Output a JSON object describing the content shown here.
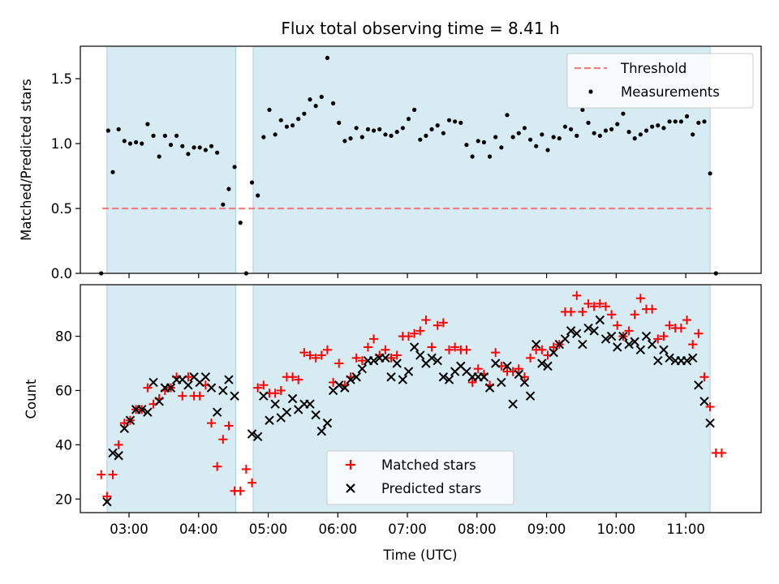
{
  "chart_data": [
    {
      "type": "scatter",
      "title": "Flux total observing time = 8.41 h",
      "xlabel": "",
      "ylabel": "Matched/Predicted stars",
      "xlim": [
        "02:18",
        "12:05"
      ],
      "ylim": [
        0,
        1.75
      ],
      "yticks": [
        "0.0",
        "0.5",
        "1.0",
        "1.5"
      ],
      "legend": {
        "placement": "top-right"
      },
      "shaded_intervals": [
        [
          "02:41",
          "04:32"
        ],
        [
          "04:47",
          "11:21"
        ]
      ],
      "series": [
        {
          "name": "Threshold",
          "style": "dashed-line",
          "color": "#f08080",
          "x": [
            "02:37",
            "11:22"
          ],
          "y": [
            0.5,
            0.5
          ]
        },
        {
          "name": "Measurements",
          "style": "dot",
          "color": "#000000",
          "x": [
            "02:36",
            "02:42",
            "02:46",
            "02:51",
            "02:56",
            "03:01",
            "03:06",
            "03:11",
            "03:16",
            "03:21",
            "03:26",
            "03:31",
            "03:36",
            "03:41",
            "03:46",
            "03:51",
            "03:56",
            "04:01",
            "04:06",
            "04:11",
            "04:16",
            "04:21",
            "04:26",
            "04:31",
            "04:36",
            "04:41",
            "04:46",
            "04:51",
            "04:56",
            "05:01",
            "05:06",
            "05:11",
            "05:16",
            "05:21",
            "05:26",
            "05:31",
            "05:36",
            "05:41",
            "05:46",
            "05:51",
            "05:56",
            "06:01",
            "06:06",
            "06:11",
            "06:16",
            "06:21",
            "06:26",
            "06:31",
            "06:36",
            "06:41",
            "06:46",
            "06:51",
            "06:56",
            "07:01",
            "07:06",
            "07:11",
            "07:16",
            "07:21",
            "07:26",
            "07:31",
            "07:36",
            "07:41",
            "07:46",
            "07:51",
            "07:56",
            "08:01",
            "08:06",
            "08:11",
            "08:16",
            "08:21",
            "08:26",
            "08:31",
            "08:36",
            "08:41",
            "08:46",
            "08:51",
            "08:56",
            "09:01",
            "09:06",
            "09:11",
            "09:16",
            "09:21",
            "09:26",
            "09:31",
            "09:36",
            "09:41",
            "09:46",
            "09:51",
            "09:56",
            "10:01",
            "10:06",
            "10:11",
            "10:16",
            "10:21",
            "10:26",
            "10:31",
            "10:36",
            "10:41",
            "10:46",
            "10:51",
            "10:56",
            "11:01",
            "11:06",
            "11:11",
            "11:16",
            "11:21",
            "11:26"
          ],
          "y": [
            0.0,
            1.1,
            0.78,
            1.11,
            1.02,
            1.0,
            1.01,
            1.0,
            1.15,
            1.06,
            0.9,
            1.06,
            0.99,
            1.06,
            0.98,
            0.92,
            0.97,
            0.97,
            0.95,
            0.98,
            0.93,
            0.53,
            0.65,
            0.82,
            0.39,
            0.0,
            0.7,
            0.6,
            1.05,
            1.26,
            1.07,
            1.18,
            1.13,
            1.14,
            1.19,
            1.23,
            1.34,
            1.29,
            1.36,
            1.66,
            1.31,
            1.16,
            1.02,
            1.04,
            1.12,
            1.05,
            1.11,
            1.1,
            1.11,
            1.07,
            1.06,
            1.09,
            1.12,
            1.19,
            1.26,
            1.03,
            1.06,
            1.11,
            1.14,
            1.08,
            1.18,
            1.17,
            1.16,
            0.99,
            0.9,
            1.02,
            1.01,
            0.9,
            1.05,
            0.97,
            1.22,
            1.05,
            1.08,
            1.12,
            1.03,
            0.98,
            1.07,
            0.95,
            1.05,
            1.04,
            1.13,
            1.11,
            1.06,
            1.26,
            1.16,
            1.08,
            1.06,
            1.1,
            1.11,
            1.15,
            1.23,
            1.09,
            1.04,
            1.07,
            1.1,
            1.13,
            1.14,
            1.12,
            1.17,
            1.17,
            1.17,
            1.21,
            1.07,
            1.16,
            1.17,
            0.77,
            0.0
          ]
        }
      ]
    },
    {
      "type": "scatter",
      "title": "",
      "xlabel": "Time (UTC)",
      "ylabel": "Count",
      "xlim": [
        "02:18",
        "12:05"
      ],
      "ylim": [
        15,
        99
      ],
      "xticks": [
        "03:00",
        "04:00",
        "05:00",
        "06:00",
        "07:00",
        "08:00",
        "09:00",
        "10:00",
        "11:00"
      ],
      "yticks": [
        "20",
        "40",
        "60",
        "80"
      ],
      "legend": {
        "placement": "bottom-center"
      },
      "shaded_intervals": [
        [
          "02:41",
          "04:32"
        ],
        [
          "04:47",
          "11:21"
        ]
      ],
      "series": [
        {
          "name": "Matched stars",
          "style": "plus",
          "color": "#ff0000",
          "x": [
            "02:36",
            "02:41",
            "02:46",
            "02:51",
            "02:56",
            "03:01",
            "03:06",
            "03:11",
            "03:16",
            "03:21",
            "03:26",
            "03:31",
            "03:36",
            "03:41",
            "03:46",
            "03:51",
            "03:56",
            "04:01",
            "04:06",
            "04:11",
            "04:16",
            "04:21",
            "04:26",
            "04:31",
            "04:36",
            "04:41",
            "04:46",
            "04:51",
            "04:56",
            "05:01",
            "05:06",
            "05:11",
            "05:16",
            "05:21",
            "05:26",
            "05:31",
            "05:36",
            "05:41",
            "05:46",
            "05:51",
            "05:56",
            "06:01",
            "06:06",
            "06:11",
            "06:16",
            "06:21",
            "06:26",
            "06:31",
            "06:36",
            "06:41",
            "06:46",
            "06:51",
            "06:56",
            "07:01",
            "07:06",
            "07:11",
            "07:16",
            "07:21",
            "07:26",
            "07:31",
            "07:36",
            "07:41",
            "07:46",
            "07:51",
            "07:56",
            "08:01",
            "08:06",
            "08:11",
            "08:16",
            "08:21",
            "08:26",
            "08:31",
            "08:36",
            "08:41",
            "08:46",
            "08:51",
            "08:56",
            "09:01",
            "09:06",
            "09:11",
            "09:16",
            "09:21",
            "09:26",
            "09:31",
            "09:36",
            "09:41",
            "09:46",
            "09:51",
            "09:56",
            "10:01",
            "10:06",
            "10:11",
            "10:16",
            "10:21",
            "10:26",
            "10:31",
            "10:36",
            "10:41",
            "10:46",
            "10:51",
            "10:56",
            "11:01",
            "11:06",
            "11:11",
            "11:16",
            "11:21",
            "11:26",
            "11:31"
          ],
          "y": [
            29,
            21,
            29,
            40,
            48,
            49,
            53,
            53,
            61,
            55,
            57,
            60,
            61,
            65,
            58,
            65,
            58,
            58,
            62,
            48,
            32,
            42,
            47,
            23,
            23,
            31,
            26,
            61,
            62,
            59,
            59,
            60,
            65,
            65,
            64,
            74,
            73,
            72,
            73,
            75,
            63,
            70,
            62,
            65,
            72,
            71,
            76,
            79,
            73,
            75,
            72,
            73,
            80,
            80,
            81,
            82,
            86,
            76,
            84,
            85,
            75,
            76,
            75,
            75,
            63,
            68,
            66,
            62,
            74,
            69,
            67,
            67,
            68,
            65,
            72,
            75,
            75,
            73,
            76,
            77,
            89,
            89,
            95,
            89,
            92,
            91,
            92,
            91,
            88,
            84,
            80,
            82,
            88,
            94,
            90,
            90,
            79,
            80,
            84,
            83,
            83,
            86,
            77,
            81,
            65,
            54,
            37,
            37
          ]
        },
        {
          "name": "Predicted stars",
          "style": "x",
          "color": "#000000",
          "x": [
            "02:41",
            "02:46",
            "02:51",
            "02:56",
            "03:01",
            "03:06",
            "03:11",
            "03:16",
            "03:21",
            "03:26",
            "03:31",
            "03:36",
            "03:41",
            "03:46",
            "03:51",
            "03:56",
            "04:01",
            "04:06",
            "04:11",
            "04:16",
            "04:21",
            "04:26",
            "04:31",
            "04:46",
            "04:51",
            "04:56",
            "05:01",
            "05:06",
            "05:11",
            "05:16",
            "05:21",
            "05:26",
            "05:31",
            "05:36",
            "05:41",
            "05:46",
            "05:51",
            "05:56",
            "06:01",
            "06:06",
            "06:11",
            "06:16",
            "06:21",
            "06:26",
            "06:31",
            "06:36",
            "06:41",
            "06:46",
            "06:51",
            "06:56",
            "07:01",
            "07:06",
            "07:11",
            "07:16",
            "07:21",
            "07:26",
            "07:31",
            "07:36",
            "07:41",
            "07:46",
            "07:51",
            "07:56",
            "08:01",
            "08:06",
            "08:11",
            "08:16",
            "08:21",
            "08:26",
            "08:31",
            "08:36",
            "08:41",
            "08:46",
            "08:51",
            "08:56",
            "09:01",
            "09:06",
            "09:11",
            "09:16",
            "09:21",
            "09:26",
            "09:31",
            "09:36",
            "09:41",
            "09:46",
            "09:51",
            "09:56",
            "10:01",
            "10:06",
            "10:11",
            "10:16",
            "10:21",
            "10:26",
            "10:31",
            "10:36",
            "10:41",
            "10:46",
            "10:51",
            "10:56",
            "11:01",
            "11:06",
            "11:11",
            "11:16",
            "11:21",
            "11:26"
          ],
          "y": [
            19,
            37,
            36,
            46,
            49,
            53,
            53,
            52,
            63,
            56,
            61,
            61,
            64,
            64,
            62,
            65,
            63,
            65,
            61,
            52,
            60,
            64,
            58,
            44,
            43,
            58,
            49,
            55,
            50,
            52,
            57,
            53,
            55,
            55,
            51,
            45,
            48,
            60,
            62,
            61,
            64,
            65,
            68,
            71,
            71,
            72,
            72,
            65,
            70,
            64,
            67,
            76,
            73,
            70,
            72,
            71,
            65,
            64,
            67,
            69,
            67,
            65,
            65,
            65,
            61,
            70,
            63,
            69,
            55,
            66,
            63,
            58,
            77,
            70,
            69,
            74,
            77,
            79,
            82,
            81,
            77,
            83,
            82,
            86,
            79,
            80,
            76,
            80,
            77,
            78,
            75,
            80,
            77,
            71,
            75,
            72,
            71,
            71,
            71,
            72,
            62,
            56,
            48,
            null
          ]
        }
      ]
    }
  ]
}
